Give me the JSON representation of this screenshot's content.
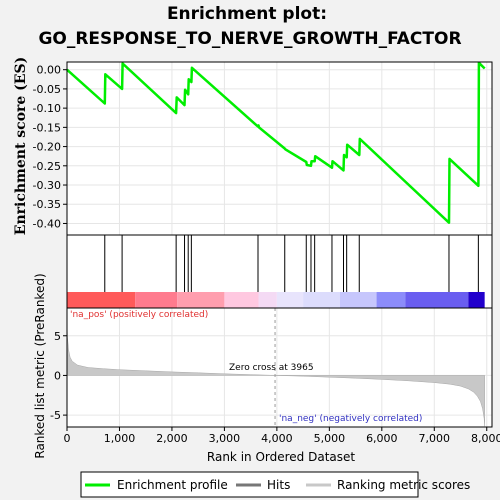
{
  "chart_data": {
    "type": "line",
    "title_line1": "Enrichment plot:",
    "title_line2": "GO_RESPONSE_TO_NERVE_GROWTH_FACTOR",
    "es_ylabel": "Enrichment score (ES)",
    "metric_ylabel": "Ranked list metric (PreRanked)",
    "xlabel": "Rank in Ordered Dataset",
    "xlim": [
      0,
      8100
    ],
    "es_ylim": [
      -0.43,
      0.02
    ],
    "metric_ylim": [
      -6.5,
      8.5
    ],
    "x_ticks": [
      "0",
      "1,000",
      "2,000",
      "3,000",
      "4,000",
      "5,000",
      "6,000",
      "7,000",
      "8,000"
    ],
    "x_tick_values": [
      0,
      1000,
      2000,
      3000,
      4000,
      5000,
      6000,
      7000,
      8000
    ],
    "es_ticks": [
      "0.00",
      "-0.05",
      "-0.10",
      "-0.15",
      "-0.20",
      "-0.25",
      "-0.30",
      "-0.35",
      "-0.40"
    ],
    "es_tick_values": [
      0.0,
      -0.05,
      -0.1,
      -0.15,
      -0.2,
      -0.25,
      -0.3,
      -0.35,
      -0.4
    ],
    "metric_ticks": [
      "5",
      "0",
      "-5"
    ],
    "metric_tick_values": [
      5,
      0,
      -5
    ],
    "enrichment_profile": {
      "name": "Enrichment profile",
      "color": "#00ee00",
      "x": [
        0,
        720,
        730,
        1050,
        1060,
        2080,
        2090,
        2240,
        2250,
        2310,
        2320,
        2370,
        2380,
        3640,
        3650,
        3660,
        4150,
        4160,
        4560,
        4570,
        4650,
        4660,
        4720,
        4730,
        5050,
        5060,
        5270,
        5280,
        5330,
        5340,
        5570,
        5580,
        7280,
        7290,
        7840,
        7850,
        7960
      ],
      "y": [
        0.0,
        -0.088,
        -0.012,
        -0.05,
        0.016,
        -0.113,
        -0.072,
        -0.092,
        -0.052,
        -0.064,
        -0.025,
        -0.032,
        0.005,
        -0.148,
        -0.145,
        -0.15,
        -0.205,
        -0.207,
        -0.24,
        -0.248,
        -0.25,
        -0.238,
        -0.238,
        -0.225,
        -0.255,
        -0.238,
        -0.262,
        -0.222,
        -0.228,
        -0.195,
        -0.222,
        -0.18,
        -0.398,
        -0.232,
        -0.302,
        0.018,
        0.003
      ]
    },
    "hits": {
      "name": "Hits",
      "color": "#000000",
      "x": [
        720,
        1050,
        2080,
        2240,
        2310,
        2370,
        3640,
        4150,
        4560,
        4650,
        4720,
        5050,
        5270,
        5330,
        5570,
        7280,
        7840
      ]
    },
    "ranking_metric": {
      "name": "Ranking metric scores",
      "color": "#c8c8c8",
      "x": [
        0,
        10,
        30,
        60,
        100,
        200,
        400,
        700,
        1000,
        1500,
        2000,
        2500,
        3000,
        3500,
        3965,
        4500,
        5000,
        5500,
        6000,
        6500,
        7000,
        7300,
        7500,
        7650,
        7750,
        7820,
        7880,
        7920,
        7950,
        7960
      ],
      "y": [
        6.8,
        4.8,
        3.2,
        2.3,
        1.8,
        1.3,
        1.0,
        0.85,
        0.72,
        0.58,
        0.45,
        0.33,
        0.2,
        0.1,
        0.0,
        -0.1,
        -0.22,
        -0.35,
        -0.5,
        -0.68,
        -0.9,
        -1.1,
        -1.35,
        -1.7,
        -2.1,
        -2.6,
        -3.3,
        -4.2,
        -5.4,
        -6.4
      ]
    },
    "zero_cross": 3965,
    "zero_cross_label": "Zero cross at 3965",
    "pos_label": "'na_pos' (positively correlated)",
    "neg_label": "'na_neg' (negatively correlated)",
    "color_bar": [
      {
        "from": 0,
        "to": 1300,
        "color": "#ff5a5a"
      },
      {
        "from": 1300,
        "to": 2100,
        "color": "#ff7b8e"
      },
      {
        "from": 2100,
        "to": 3000,
        "color": "#ff9eae"
      },
      {
        "from": 3000,
        "to": 3650,
        "color": "#ffc8e0"
      },
      {
        "from": 3650,
        "to": 4000,
        "color": "#f4daf4"
      },
      {
        "from": 4000,
        "to": 4500,
        "color": "#e8e4fc"
      },
      {
        "from": 4500,
        "to": 5200,
        "color": "#dcdcfc"
      },
      {
        "from": 5200,
        "to": 5900,
        "color": "#c6c6fc"
      },
      {
        "from": 5900,
        "to": 6450,
        "color": "#8c8cfa"
      },
      {
        "from": 6450,
        "to": 7650,
        "color": "#6a5ef0"
      },
      {
        "from": 7650,
        "to": 7960,
        "color": "#2200cc"
      }
    ],
    "legend": [
      {
        "label": "Enrichment profile",
        "color": "#00ee00",
        "kind": "line"
      },
      {
        "label": "Hits",
        "color": "#000000",
        "kind": "line"
      },
      {
        "label": "Ranking metric scores",
        "color": "#c8c8c8",
        "kind": "line"
      }
    ]
  }
}
